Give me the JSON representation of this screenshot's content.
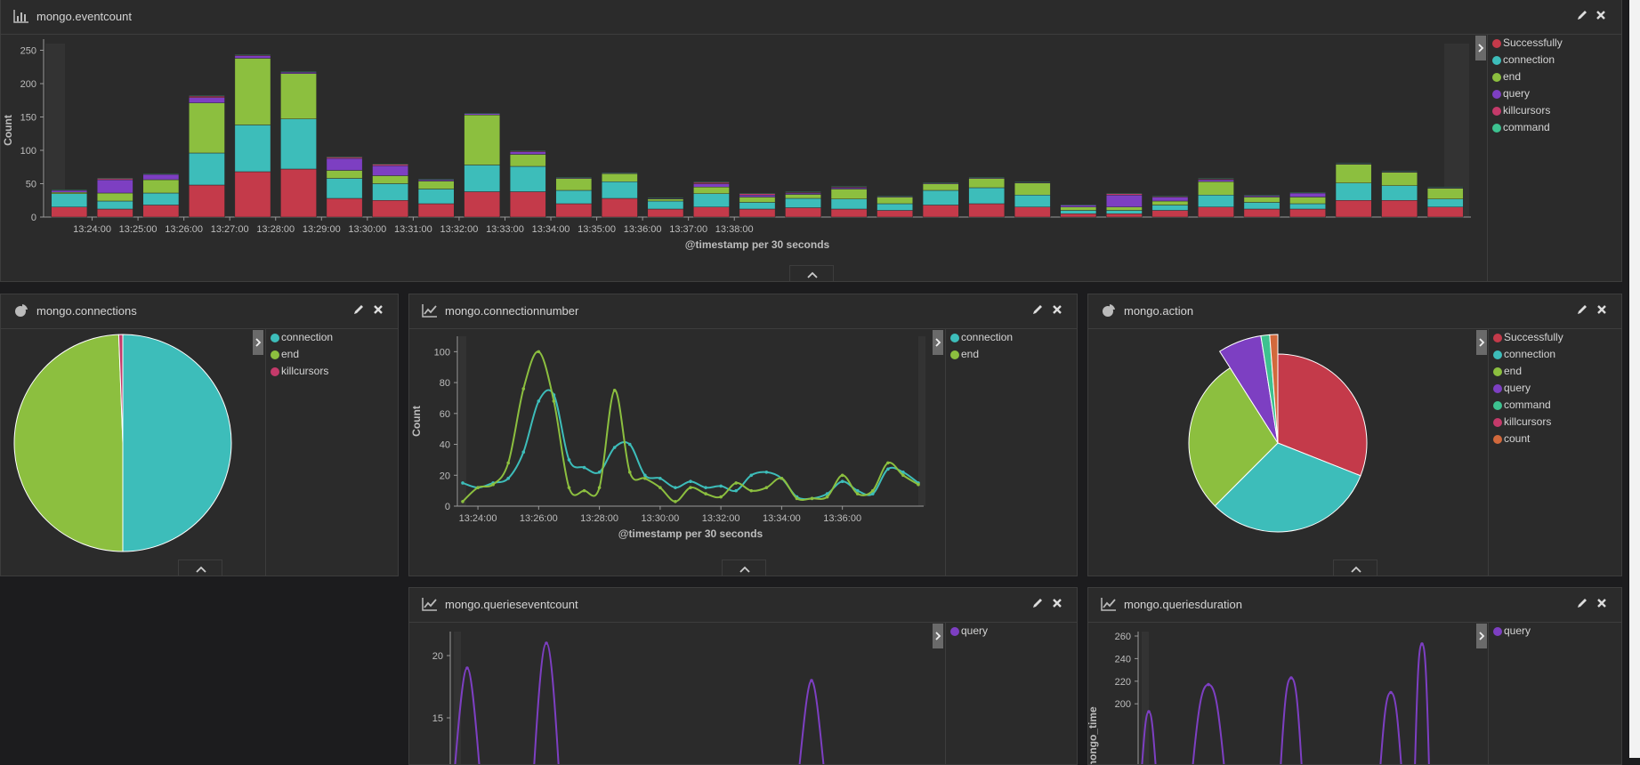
{
  "panels": {
    "eventcount": {
      "title": "mongo.eventcount",
      "legend": [
        {
          "label": "Successfully",
          "color": "#c43a4a"
        },
        {
          "label": "connection",
          "color": "#3dbdba"
        },
        {
          "label": "end",
          "color": "#8cbf3f"
        },
        {
          "label": "query",
          "color": "#7d3fc2"
        },
        {
          "label": "killcursors",
          "color": "#c43a6a"
        },
        {
          "label": "command",
          "color": "#3dc290"
        }
      ]
    },
    "connections": {
      "title": "mongo.connections",
      "legend": [
        {
          "label": "connection",
          "color": "#3dbdba"
        },
        {
          "label": "end",
          "color": "#8cbf3f"
        },
        {
          "label": "killcursors",
          "color": "#c43a6a"
        }
      ]
    },
    "connectionnumber": {
      "title": "mongo.connectionnumber",
      "legend": [
        {
          "label": "connection",
          "color": "#3dbdba"
        },
        {
          "label": "end",
          "color": "#8cbf3f"
        }
      ]
    },
    "action": {
      "title": "mongo.action",
      "legend": [
        {
          "label": "Successfully",
          "color": "#c43a4a"
        },
        {
          "label": "connection",
          "color": "#3dbdba"
        },
        {
          "label": "end",
          "color": "#8cbf3f"
        },
        {
          "label": "query",
          "color": "#7d3fc2"
        },
        {
          "label": "command",
          "color": "#3dc290"
        },
        {
          "label": "killcursors",
          "color": "#c43a6a"
        },
        {
          "label": "count",
          "color": "#d2693c"
        }
      ]
    },
    "querieseventcount": {
      "title": "mongo.querieseventcount",
      "legend": [
        {
          "label": "query",
          "color": "#7d3fc2"
        }
      ]
    },
    "queriesduration": {
      "title": "mongo.queriesduration",
      "legend": [
        {
          "label": "query",
          "color": "#7d3fc2"
        }
      ]
    }
  },
  "chart_data": [
    {
      "id": "eventcount",
      "type": "bar",
      "stacked": true,
      "title": "mongo.eventcount",
      "xlabel": "@timestamp per 30 seconds",
      "ylabel": "Count",
      "ylim": [
        0,
        260
      ],
      "yticks": [
        0,
        50,
        100,
        150,
        200,
        250
      ],
      "xtick_labels": [
        "13:24:00",
        "13:25:00",
        "13:26:00",
        "13:27:00",
        "13:28:00",
        "13:29:00",
        "13:30:00",
        "13:31:00",
        "13:32:00",
        "13:33:00",
        "13:34:00",
        "13:35:00",
        "13:36:00",
        "13:37:00",
        "13:38:00"
      ],
      "categories": [
        "13:23:30",
        "13:24:00",
        "13:24:30",
        "13:25:00",
        "13:25:30",
        "13:26:00",
        "13:26:30",
        "13:27:00",
        "13:27:30",
        "13:28:00",
        "13:28:30",
        "13:29:00",
        "13:29:30",
        "13:30:00",
        "13:30:30",
        "13:31:00",
        "13:31:30",
        "13:32:00",
        "13:32:30",
        "13:33:00",
        "13:33:30",
        "13:34:00",
        "13:34:30",
        "13:35:00",
        "13:35:30",
        "13:36:00",
        "13:36:30",
        "13:37:00",
        "13:37:30",
        "13:38:00",
        "13:38:30"
      ],
      "series": [
        {
          "name": "Successfully",
          "color": "#c43a4a",
          "values": [
            15,
            12,
            18,
            48,
            68,
            72,
            28,
            25,
            20,
            38,
            38,
            20,
            28,
            12,
            15,
            12,
            14,
            12,
            10,
            18,
            20,
            15,
            5,
            5,
            10,
            15,
            12,
            12,
            25,
            25,
            15
          ]
        },
        {
          "name": "connection",
          "color": "#3dbdba",
          "values": [
            20,
            12,
            18,
            48,
            70,
            75,
            30,
            25,
            22,
            40,
            38,
            20,
            25,
            12,
            20,
            10,
            14,
            15,
            10,
            22,
            24,
            18,
            5,
            5,
            8,
            18,
            10,
            8,
            26,
            22,
            12
          ]
        },
        {
          "name": "end",
          "color": "#8cbf3f",
          "values": [
            2,
            12,
            20,
            75,
            100,
            68,
            12,
            12,
            12,
            75,
            18,
            18,
            12,
            3,
            10,
            8,
            6,
            15,
            10,
            10,
            14,
            18,
            5,
            5,
            6,
            20,
            8,
            10,
            28,
            20,
            16
          ]
        },
        {
          "name": "query",
          "color": "#7d3fc2",
          "values": [
            3,
            20,
            8,
            8,
            4,
            2,
            18,
            15,
            2,
            2,
            4,
            1,
            1,
            1,
            5,
            3,
            2,
            2,
            1,
            1,
            1,
            1,
            3,
            18,
            6,
            3,
            2,
            6,
            1,
            1,
            1
          ]
        },
        {
          "name": "killcursors",
          "color": "#c43a6a",
          "values": [
            0,
            2,
            0,
            2,
            1,
            0,
            2,
            2,
            0,
            0,
            1,
            0,
            0,
            0,
            2,
            2,
            1,
            1,
            0,
            0,
            0,
            0,
            0,
            2,
            1,
            1,
            0,
            0,
            0,
            0,
            0
          ]
        },
        {
          "name": "command",
          "color": "#3dc290",
          "values": [
            1,
            1,
            1,
            1,
            1,
            1,
            1,
            1,
            1,
            1,
            1,
            1,
            1,
            1,
            1,
            1,
            1,
            1,
            1,
            1,
            1,
            1,
            1,
            1,
            1,
            1,
            1,
            1,
            1,
            1,
            1
          ]
        }
      ]
    },
    {
      "id": "connections",
      "type": "pie",
      "title": "mongo.connections",
      "slices": [
        {
          "label": "connection",
          "color": "#3dbdba",
          "value": 50
        },
        {
          "label": "end",
          "color": "#8cbf3f",
          "value": 49.4
        },
        {
          "label": "killcursors",
          "color": "#c43a6a",
          "value": 0.6
        }
      ]
    },
    {
      "id": "connectionnumber",
      "type": "line",
      "title": "mongo.connectionnumber",
      "xlabel": "@timestamp per 30 seconds",
      "ylabel": "Count",
      "ylim": [
        0,
        110
      ],
      "yticks": [
        0,
        20,
        40,
        60,
        80,
        100
      ],
      "xtick_labels": [
        "13:24:00",
        "13:26:00",
        "13:28:00",
        "13:30:00",
        "13:32:00",
        "13:34:00",
        "13:36:00"
      ],
      "series": [
        {
          "name": "connection",
          "color": "#3dbdba",
          "values": [
            15,
            12,
            15,
            18,
            35,
            68,
            72,
            30,
            25,
            22,
            38,
            40,
            20,
            18,
            12,
            16,
            12,
            13,
            10,
            20,
            22,
            18,
            6,
            5,
            8,
            16,
            10,
            8,
            24,
            22,
            15
          ]
        },
        {
          "name": "end",
          "color": "#8cbf3f",
          "values": [
            3,
            12,
            14,
            28,
            76,
            100,
            68,
            12,
            10,
            12,
            75,
            22,
            18,
            12,
            3,
            12,
            8,
            6,
            15,
            10,
            12,
            18,
            5,
            5,
            6,
            20,
            8,
            10,
            28,
            20,
            14
          ]
        }
      ]
    },
    {
      "id": "action",
      "type": "pie",
      "title": "mongo.action",
      "slices": [
        {
          "label": "Successfully",
          "color": "#c43a4a",
          "value": 31
        },
        {
          "label": "connection",
          "color": "#3dbdba",
          "value": 31.5
        },
        {
          "label": "end",
          "color": "#8cbf3f",
          "value": 28.5
        },
        {
          "label": "query",
          "color": "#7d3fc2",
          "value": 6.5
        },
        {
          "label": "command",
          "color": "#3dc290",
          "value": 1.3
        },
        {
          "label": "killcursors",
          "color": "#c43a6a",
          "value": 0
        },
        {
          "label": "count",
          "color": "#d2693c",
          "value": 1.2
        }
      ]
    },
    {
      "id": "querieseventcount",
      "type": "line",
      "title": "mongo.querieseventcount",
      "yticks": [
        15,
        20
      ],
      "ylim": [
        8,
        22
      ],
      "series": [
        {
          "name": "query",
          "color": "#7d3fc2"
        }
      ]
    },
    {
      "id": "queriesduration",
      "type": "line",
      "title": "mongo.queriesduration",
      "ylabel": "mongo_time",
      "yticks": [
        200,
        220,
        240,
        260
      ],
      "ylim": [
        180,
        262
      ],
      "series": [
        {
          "name": "query",
          "color": "#7d3fc2"
        }
      ]
    }
  ]
}
